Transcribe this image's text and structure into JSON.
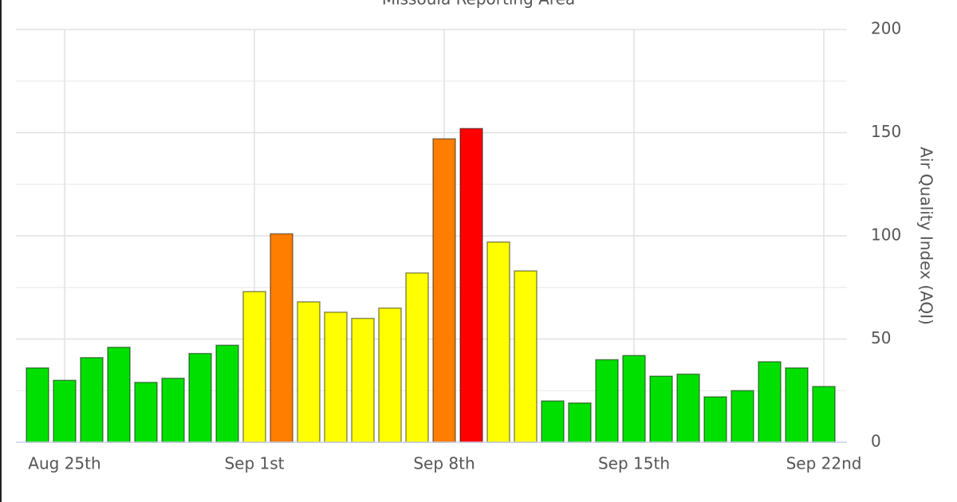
{
  "chart_data": {
    "type": "bar",
    "title": "Missoula Reporting Area",
    "y_axis_label": "Air Quality Index (AQI)",
    "categories": [
      null,
      "Aug 25th",
      null,
      null,
      null,
      null,
      null,
      null,
      "Sep 1st",
      null,
      null,
      null,
      null,
      null,
      null,
      "Sep 8th",
      null,
      null,
      null,
      null,
      null,
      null,
      "Sep 15th",
      null,
      null,
      null,
      null,
      null,
      null,
      "Sep 22nd"
    ],
    "values": [
      36,
      30,
      41,
      46,
      29,
      31,
      43,
      47,
      73,
      101,
      68,
      63,
      60,
      65,
      82,
      147,
      152,
      97,
      83,
      20,
      19,
      40,
      42,
      32,
      33,
      22,
      25,
      39,
      36,
      27
    ],
    "colors": [
      "#00e000",
      "#00e000",
      "#00e000",
      "#00e000",
      "#00e000",
      "#00e000",
      "#00e000",
      "#00e000",
      "#ffff00",
      "#ff7e00",
      "#ffff00",
      "#ffff00",
      "#ffff00",
      "#ffff00",
      "#ffff00",
      "#ff7e00",
      "#ff0000",
      "#ffff00",
      "#ffff00",
      "#00e000",
      "#00e000",
      "#00e000",
      "#00e000",
      "#00e000",
      "#00e000",
      "#00e000",
      "#00e000",
      "#00e000",
      "#00e000",
      "#00e000"
    ],
    "ylim": [
      0,
      200
    ],
    "yticks": [
      0,
      50,
      100,
      150,
      200
    ],
    "minor_yticks": [
      25,
      75,
      125,
      175
    ],
    "grid": true
  }
}
